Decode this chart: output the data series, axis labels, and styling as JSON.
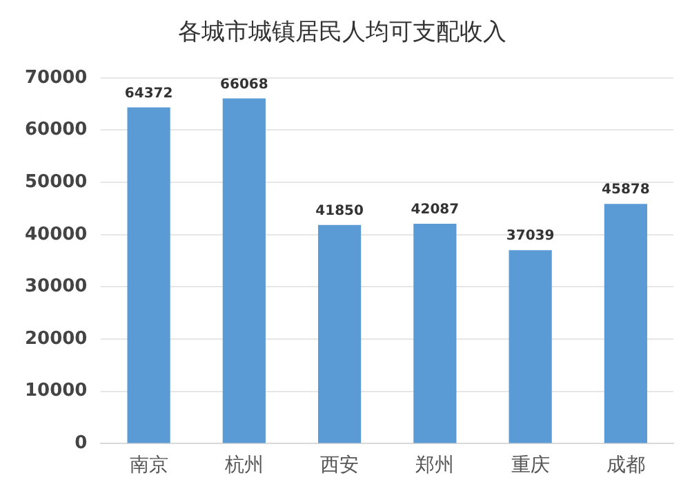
{
  "chart_data": {
    "type": "bar",
    "title": "各城市城镇居民人均可支配收入",
    "categories": [
      "南京",
      "杭州",
      "西安",
      "郑州",
      "重庆",
      "成都"
    ],
    "values": [
      64372,
      66068,
      41850,
      42087,
      37039,
      45878
    ],
    "color": "#5b9bd5",
    "ylim": [
      0,
      70000
    ],
    "yticks": [
      0,
      10000,
      20000,
      30000,
      40000,
      50000,
      60000,
      70000
    ],
    "grid": "y",
    "data_labels": true
  }
}
